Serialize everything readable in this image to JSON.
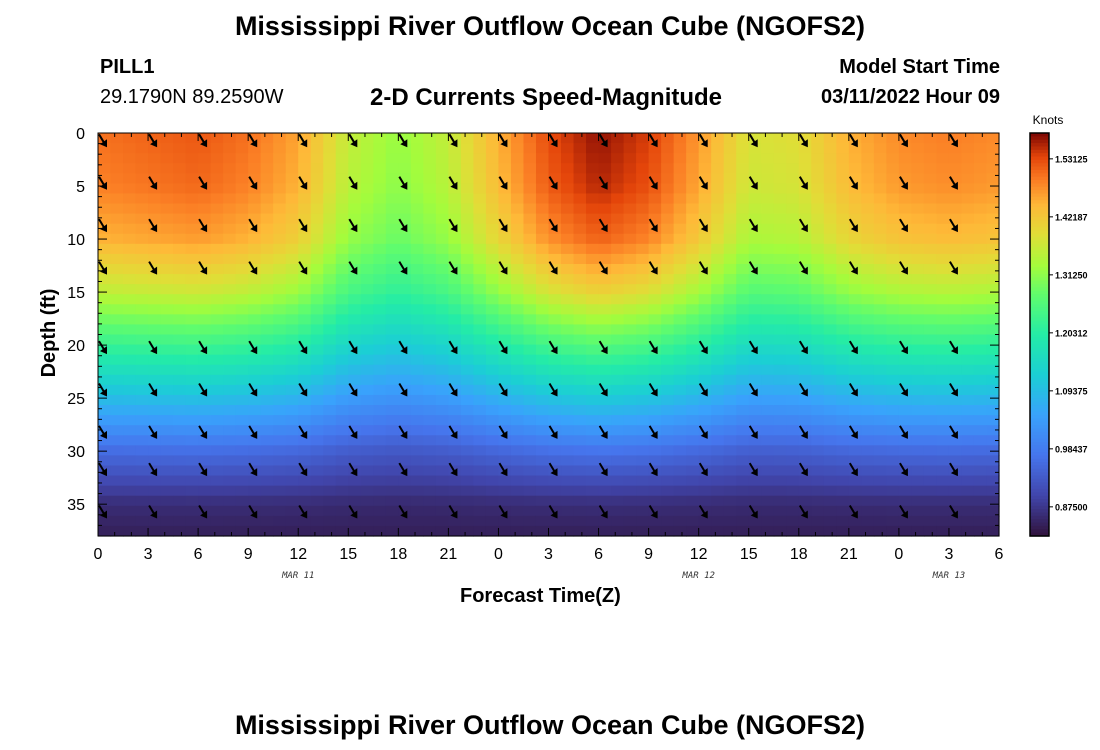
{
  "page_title": "Mississippi River Outflow Ocean Cube (NGOFS2)",
  "station": {
    "name": "PILL1",
    "coords": "29.1790N  89.2590W"
  },
  "model": {
    "label": "Model Start Time",
    "start": "03/11/2022 Hour 09"
  },
  "chart_data": {
    "type": "heatmap",
    "title": "2-D Currents Speed-Magnitude",
    "xlabel": "Forecast Time(Z)",
    "ylabel": "Depth (ft)",
    "x_ticks": [
      "0",
      "3",
      "6",
      "9",
      "12",
      "15",
      "18",
      "21",
      "0",
      "3",
      "6",
      "9",
      "12",
      "15",
      "18",
      "21",
      "0",
      "3",
      "6"
    ],
    "x_range_hours": [
      0,
      54
    ],
    "date_labels": [
      {
        "label": "MAR 11",
        "hour": 12
      },
      {
        "label": "MAR 12",
        "hour": 36
      },
      {
        "label": "MAR 13",
        "hour": 51
      }
    ],
    "y_ticks": [
      0,
      5,
      10,
      15,
      20,
      25,
      30,
      35
    ],
    "ylim": [
      0,
      38
    ],
    "y_inverted": true,
    "colorbar": {
      "unit": "Knots",
      "tick_labels": [
        "1.53125",
        "1.42187",
        "1.31250",
        "1.20312",
        "1.09375",
        "0.98437",
        "0.87500"
      ],
      "tick_values": [
        1.53125,
        1.421875,
        1.3125,
        1.203125,
        1.09375,
        0.984375,
        0.875
      ],
      "range": [
        0.82,
        1.58
      ],
      "colormap": "turbo"
    },
    "surface_speed_profile": {
      "hours": [
        0,
        3,
        6,
        9,
        12,
        15,
        18,
        21,
        24,
        27,
        30,
        33,
        36,
        39,
        42,
        45,
        48,
        51,
        54
      ],
      "speed_knots": [
        1.5,
        1.51,
        1.52,
        1.5,
        1.46,
        1.36,
        1.32,
        1.36,
        1.45,
        1.53,
        1.57,
        1.54,
        1.47,
        1.38,
        1.39,
        1.45,
        1.48,
        1.49,
        1.48
      ]
    },
    "depth_profile": {
      "depths_ft": [
        0,
        5,
        10,
        15,
        20,
        25,
        30,
        35,
        38
      ],
      "drop_factor": [
        0,
        0.02,
        0.08,
        0.22,
        0.42,
        0.62,
        0.82,
        0.97,
        1.0
      ]
    },
    "vector_direction": "southeast",
    "vector_hours": [
      0,
      3,
      6,
      9,
      12,
      15,
      18,
      21,
      24,
      27,
      30,
      33,
      36,
      39,
      42,
      45,
      48,
      51
    ],
    "vector_depths_ft": [
      0.5,
      4.5,
      8.5,
      12.5,
      20.0,
      24.0,
      28.0,
      31.5,
      35.5
    ]
  },
  "bottom_title": "Mississippi River Outflow Ocean Cube (NGOFS2)"
}
